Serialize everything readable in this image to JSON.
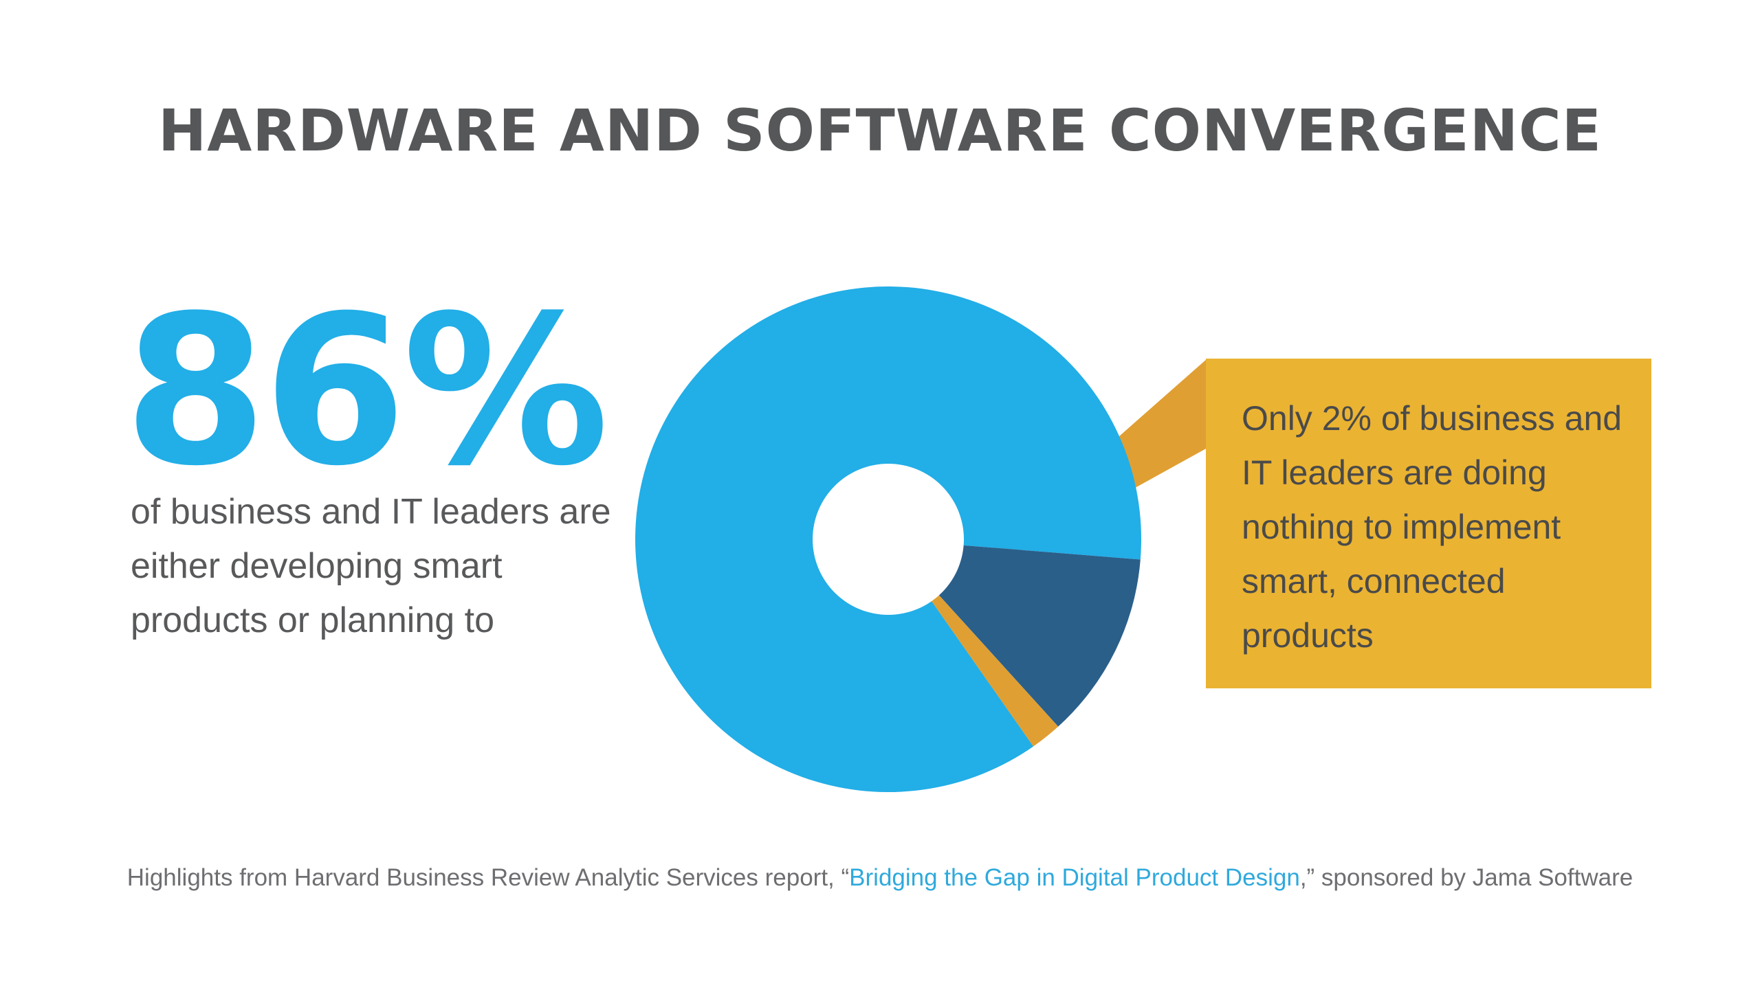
{
  "title": "HARDWARE AND SOFTWARE CONVERGENCE",
  "stat": {
    "value": "86%",
    "description": "of business and IT leaders are either developing smart products or planning to"
  },
  "callout": {
    "text": "Only 2% of business and IT leaders are doing nothing to implement smart, connected products"
  },
  "footer": {
    "prefix": "Highlights from Harvard Business Review Analytic Services report, “",
    "link": "Bridging the Gap in Digital Product Design",
    "suffix": ",” sponsored by Jama Software"
  },
  "colors": {
    "primary": "#22aee7",
    "secondary": "#2a5f8a",
    "accent": "#eab332",
    "accent_dark": "#e09f32",
    "text": "#58595b"
  },
  "chart_data": {
    "type": "pie",
    "donut": true,
    "series": [
      {
        "value": 86,
        "color": "#22aee7"
      },
      {
        "value": 12,
        "color": "#2a5f8a"
      },
      {
        "value": 2,
        "color": "#e09f32"
      }
    ],
    "highlighted_slice": 2
  }
}
